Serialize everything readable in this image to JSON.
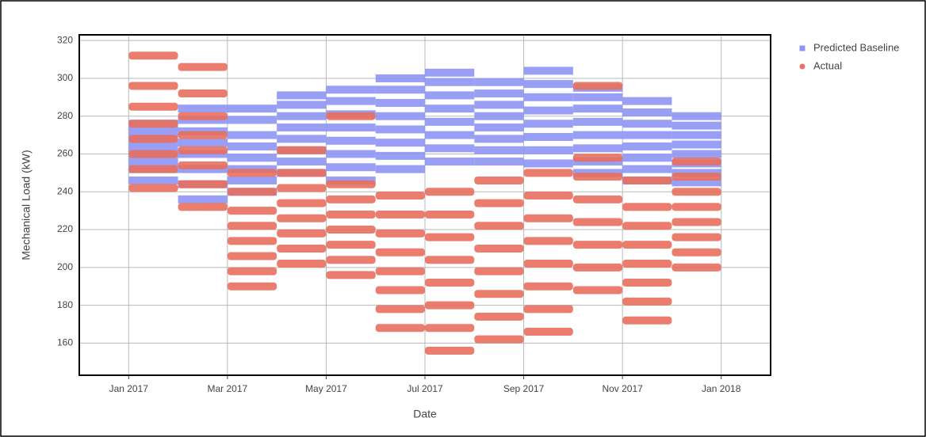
{
  "chart_data": {
    "type": "scatter",
    "x_label": "Date",
    "y_label": "Mechanical Load (kW)",
    "xlim": [
      "2016-12",
      "2018-02"
    ],
    "ylim": [
      143,
      323
    ],
    "xticks": [
      {
        "value": "2017-01",
        "label": "Jan 2017"
      },
      {
        "value": "2017-03",
        "label": "Mar 2017"
      },
      {
        "value": "2017-05",
        "label": "May 2017"
      },
      {
        "value": "2017-07",
        "label": "Jul 2017"
      },
      {
        "value": "2017-09",
        "label": "Sep 2017"
      },
      {
        "value": "2017-11",
        "label": "Nov 2017"
      },
      {
        "value": "2018-01",
        "label": "Jan 2018"
      }
    ],
    "yticks": [
      160,
      180,
      200,
      220,
      240,
      260,
      280,
      300,
      320
    ],
    "grid": true,
    "legend": "right",
    "series": [
      {
        "name": "Predicted Baseline",
        "color": "#8d95f5",
        "marker": "square",
        "x": [
          "2017-01",
          "2017-01",
          "2017-01",
          "2017-01",
          "2017-01",
          "2017-01",
          "2017-01",
          "2017-01",
          "2017-02",
          "2017-02",
          "2017-02",
          "2017-02",
          "2017-02",
          "2017-02",
          "2017-02",
          "2017-02",
          "2017-03",
          "2017-03",
          "2017-03",
          "2017-03",
          "2017-03",
          "2017-03",
          "2017-03",
          "2017-03",
          "2017-04",
          "2017-04",
          "2017-04",
          "2017-04",
          "2017-04",
          "2017-04",
          "2017-04",
          "2017-04",
          "2017-05",
          "2017-05",
          "2017-05",
          "2017-05",
          "2017-05",
          "2017-05",
          "2017-05",
          "2017-05",
          "2017-06",
          "2017-06",
          "2017-06",
          "2017-06",
          "2017-06",
          "2017-06",
          "2017-06",
          "2017-06",
          "2017-07",
          "2017-07",
          "2017-07",
          "2017-07",
          "2017-07",
          "2017-07",
          "2017-07",
          "2017-07",
          "2017-08",
          "2017-08",
          "2017-08",
          "2017-08",
          "2017-08",
          "2017-08",
          "2017-08",
          "2017-08",
          "2017-09",
          "2017-09",
          "2017-09",
          "2017-09",
          "2017-09",
          "2017-09",
          "2017-09",
          "2017-09",
          "2017-10",
          "2017-10",
          "2017-10",
          "2017-10",
          "2017-10",
          "2017-10",
          "2017-10",
          "2017-10",
          "2017-11",
          "2017-11",
          "2017-11",
          "2017-11",
          "2017-11",
          "2017-11",
          "2017-11",
          "2017-11",
          "2017-12",
          "2017-12",
          "2017-12",
          "2017-12",
          "2017-12",
          "2017-12",
          "2017-12",
          "2017-12"
        ],
        "values": [
          246,
          252,
          256,
          260,
          264,
          268,
          272,
          276,
          236,
          244,
          252,
          260,
          266,
          272,
          278,
          284,
          240,
          246,
          252,
          258,
          264,
          270,
          278,
          284,
          250,
          256,
          262,
          268,
          274,
          280,
          286,
          291,
          246,
          253,
          260,
          267,
          274,
          281,
          288,
          294,
          252,
          259,
          266,
          273,
          280,
          287,
          294,
          300,
          256,
          263,
          270,
          277,
          284,
          291,
          298,
          303,
          256,
          262,
          268,
          274,
          280,
          286,
          292,
          298,
          255,
          262,
          269,
          276,
          283,
          290,
          297,
          304,
          250,
          256,
          263,
          270,
          277,
          284,
          290,
          295,
          246,
          252,
          258,
          264,
          270,
          276,
          282,
          288,
          245,
          250,
          255,
          260,
          265,
          270,
          275,
          280
        ]
      },
      {
        "name": "Actual",
        "color": "#e8705f",
        "marker": "circle",
        "x": [
          "2017-01",
          "2017-01",
          "2017-01",
          "2017-01",
          "2017-01",
          "2017-01",
          "2017-01",
          "2017-01",
          "2017-02",
          "2017-02",
          "2017-02",
          "2017-02",
          "2017-02",
          "2017-02",
          "2017-02",
          "2017-02",
          "2017-03",
          "2017-03",
          "2017-03",
          "2017-03",
          "2017-03",
          "2017-03",
          "2017-03",
          "2017-03",
          "2017-04",
          "2017-04",
          "2017-04",
          "2017-04",
          "2017-04",
          "2017-04",
          "2017-04",
          "2017-04",
          "2017-05",
          "2017-05",
          "2017-05",
          "2017-05",
          "2017-05",
          "2017-05",
          "2017-05",
          "2017-05",
          "2017-06",
          "2017-06",
          "2017-06",
          "2017-06",
          "2017-06",
          "2017-06",
          "2017-06",
          "2017-06",
          "2017-07",
          "2017-07",
          "2017-07",
          "2017-07",
          "2017-07",
          "2017-07",
          "2017-07",
          "2017-07",
          "2017-08",
          "2017-08",
          "2017-08",
          "2017-08",
          "2017-08",
          "2017-08",
          "2017-08",
          "2017-08",
          "2017-09",
          "2017-09",
          "2017-09",
          "2017-09",
          "2017-09",
          "2017-09",
          "2017-09",
          "2017-09",
          "2017-10",
          "2017-10",
          "2017-10",
          "2017-10",
          "2017-10",
          "2017-10",
          "2017-10",
          "2017-10",
          "2017-11",
          "2017-11",
          "2017-11",
          "2017-11",
          "2017-11",
          "2017-11",
          "2017-11",
          "2017-11",
          "2017-12",
          "2017-12",
          "2017-12",
          "2017-12",
          "2017-12",
          "2017-12",
          "2017-12",
          "2017-12"
        ],
        "values": [
          242,
          252,
          260,
          268,
          276,
          285,
          296,
          312,
          232,
          244,
          254,
          262,
          270,
          280,
          292,
          306,
          190,
          198,
          206,
          214,
          222,
          230,
          240,
          250,
          202,
          210,
          218,
          226,
          234,
          242,
          250,
          262,
          196,
          204,
          212,
          220,
          228,
          236,
          244,
          280,
          168,
          178,
          188,
          198,
          208,
          218,
          228,
          238,
          156,
          168,
          180,
          192,
          204,
          216,
          228,
          240,
          162,
          174,
          186,
          198,
          210,
          222,
          234,
          246,
          166,
          178,
          190,
          202,
          214,
          226,
          238,
          250,
          188,
          200,
          212,
          224,
          236,
          248,
          258,
          296,
          172,
          182,
          192,
          202,
          212,
          222,
          232,
          246,
          200,
          208,
          216,
          224,
          232,
          240,
          248,
          256
        ]
      }
    ]
  }
}
